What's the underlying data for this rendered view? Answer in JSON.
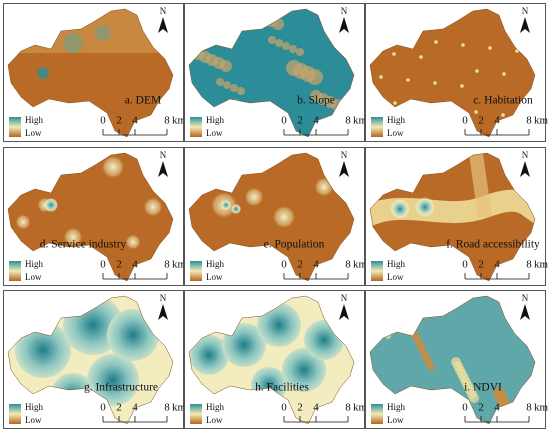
{
  "panels": [
    {
      "label": "a. DEM"
    },
    {
      "label": "b. Slope"
    },
    {
      "label": "c. Habitation"
    },
    {
      "label": "d. Service industry"
    },
    {
      "label": "e. Population"
    },
    {
      "label": "f. Road accessibility"
    },
    {
      "label": "g. Infrastructure"
    },
    {
      "label": "h. Facilities"
    },
    {
      "label": "i. NDVI"
    }
  ],
  "legend": {
    "high": "High",
    "low": "Low"
  },
  "north": "N",
  "scale_bar": {
    "ticks": [
      0,
      2,
      4,
      8
    ],
    "unit": "km"
  }
}
